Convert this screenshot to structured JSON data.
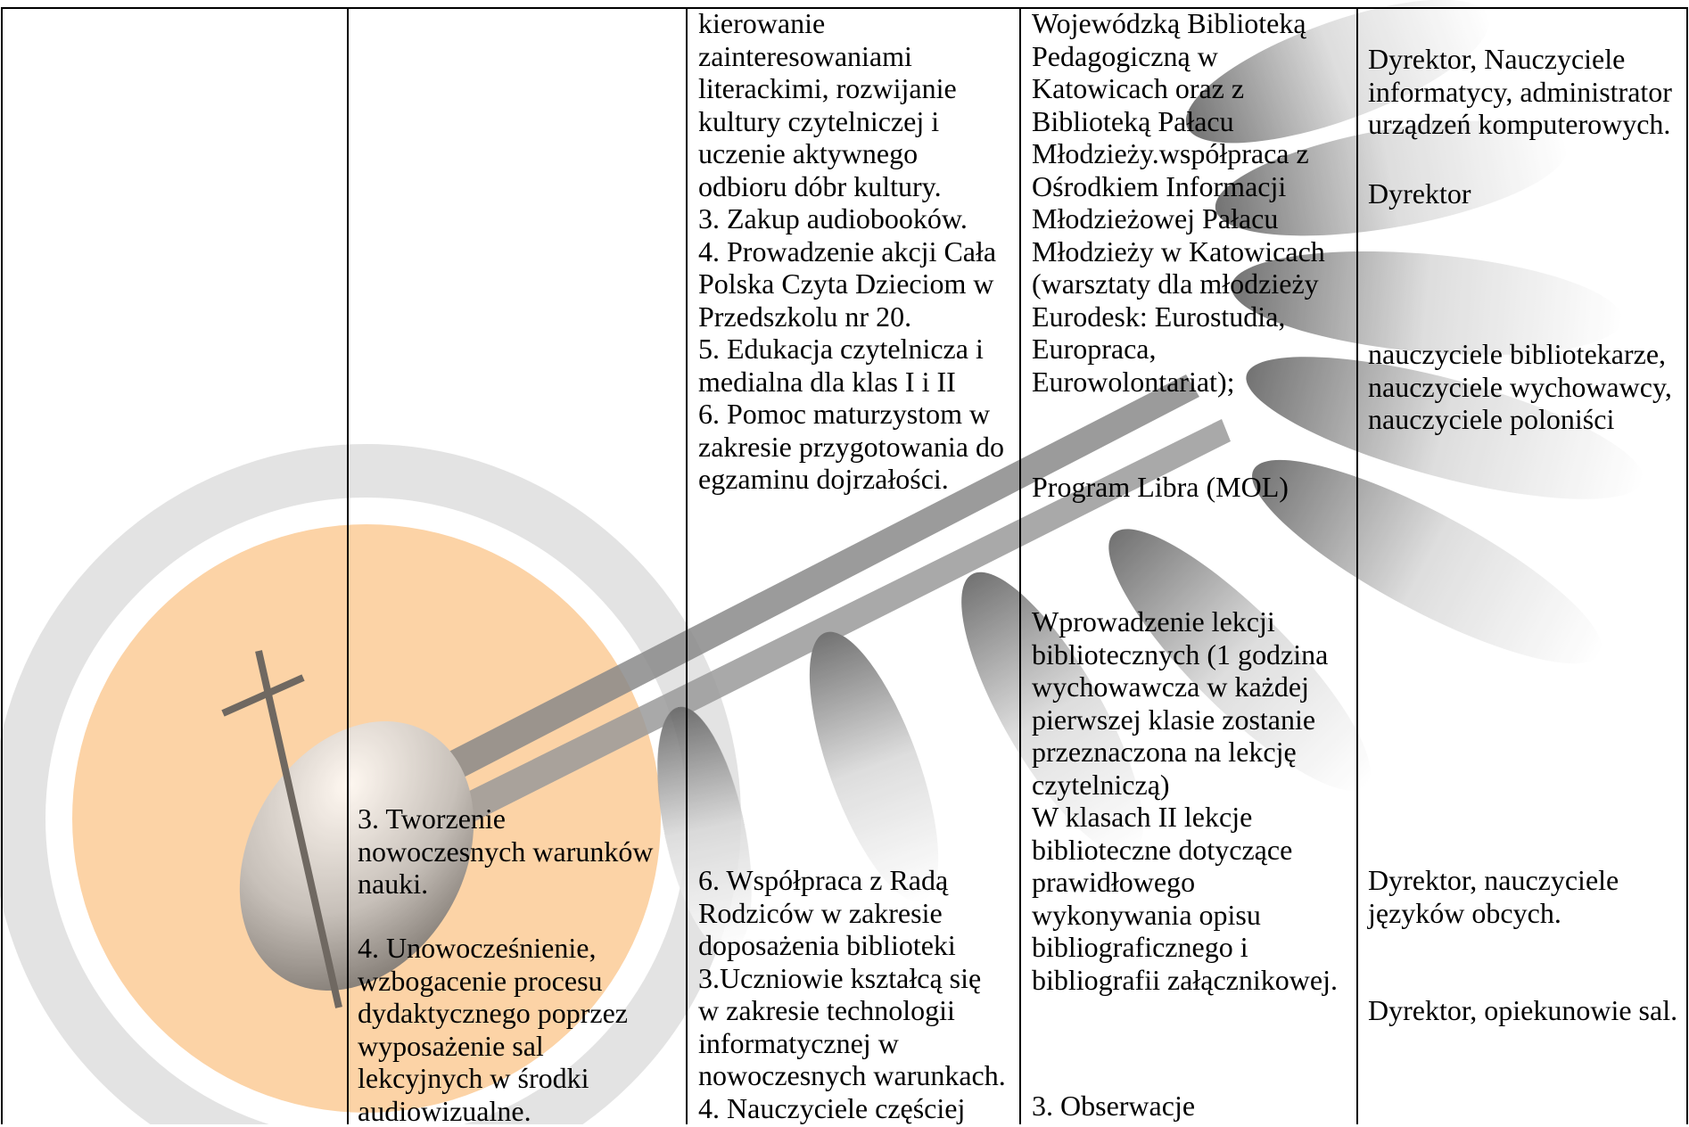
{
  "table": {
    "columns": {
      "goals": [
        [
          "3. Tworzenie",
          "nowoczesnych warunków",
          "nauki."
        ],
        [
          "4. Unowocześnienie,",
          "wzbogacenie procesu",
          "dydaktycznego poprzez",
          "wyposażenie sal",
          "lekcyjnych w środki",
          "audiowizualne."
        ]
      ],
      "tasks": [
        [
          "kierowanie",
          "zainteresowaniami",
          "literackimi, rozwijanie",
          "kultury czytelniczej i",
          "uczenie aktywnego",
          "odbioru dóbr kultury.",
          "3. Zakup audiobooków.",
          "4. Prowadzenie akcji Cała",
          "Polska Czyta Dzieciom w",
          "Przedszkolu nr 20.",
          "5. Edukacja czytelnicza i",
          "medialna dla klas I i II",
          "6. Pomoc maturzystom w",
          "zakresie przygotowania do",
          "egzaminu dojrzałości."
        ],
        [
          "6. Współpraca z Radą",
          "Rodziców w zakresie",
          "doposażenia biblioteki",
          "3.Uczniowie kształcą się",
          "w zakresie technologii",
          "informatycznej w",
          "nowoczesnych warunkach.",
          "4. Nauczyciele częściej"
        ]
      ],
      "methods": [
        [
          "Wojewódzką Biblioteką",
          "Pedagogiczną w",
          "Katowicach oraz z",
          "Biblioteką Pałacu",
          "Młodzieży.współpraca z",
          "Ośrodkiem Informacji",
          "Młodzieżowej Pałacu",
          "Młodzieży w Katowicach",
          "(warsztaty dla młodzieży",
          "Eurodesk: Eurostudia,",
          "Europraca,",
          "Eurowolontariat);"
        ],
        [
          "Program Libra (MOL)"
        ],
        [
          "Wprowadzenie lekcji",
          "bibliotecznych (1 godzina",
          "wychowawcza w każdej",
          "pierwszej klasie zostanie",
          "przeznaczona na lekcję",
          "czytelniczą)",
          "W klasach II lekcje",
          "biblioteczne dotyczące",
          "prawidłowego",
          "wykonywania opisu",
          "bibliograficznego i",
          "bibliografii załącznikowej."
        ],
        [
          "3. Obserwacje"
        ]
      ],
      "responsible": [
        [
          "Dyrektor, Nauczyciele",
          "informatycy, administrator",
          "urządzeń komputerowych."
        ],
        [
          "Dyrektor"
        ],
        [
          "nauczyciele bibliotekarze,",
          "nauczyciele wychowawcy,",
          "nauczyciele poloniści"
        ],
        [
          "Dyrektor, nauczyciele",
          "języków obcych."
        ],
        [
          "Dyrektor, opiekunowie sal."
        ]
      ]
    }
  }
}
